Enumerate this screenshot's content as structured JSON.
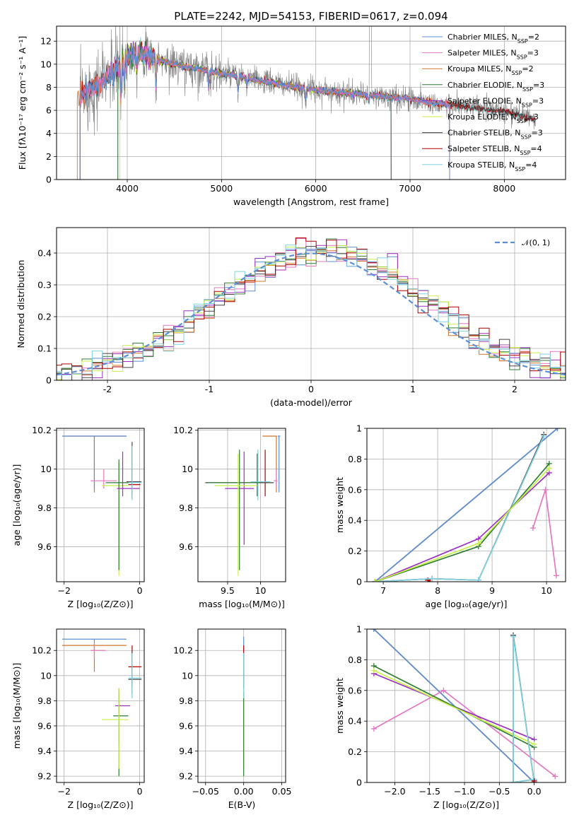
{
  "figure_title": "PLATE=2242, MJD=54153, FIBERID=0617, z=0.094",
  "colors": {
    "chabrier_miles": "#5b8fd6",
    "salpeter_miles": "#e377c2",
    "kroupa_miles": "#d2752b",
    "chabrier_elodie": "#2e7d32",
    "salpeter_elodie": "#9b30c0",
    "kroupa_elodie": "#c8f04a",
    "chabrier_stelib": "#444444",
    "salpeter_stelib": "#b00000",
    "kroupa_stelib": "#7fd3e0",
    "data": "#808080"
  },
  "chart_data": [
    {
      "type": "line",
      "title": "PLATE=2242, MJD=54153, FIBERID=0617, z=0.094",
      "xlabel": "wavelength [Angstrom, rest frame]",
      "ylabel": "Flux [fλ10⁻¹⁷ erg cm⁻² s⁻¹ A⁻¹]",
      "xlim": [
        3250,
        8650
      ],
      "ylim": [
        0,
        13.3
      ],
      "xticks": [
        4000,
        5000,
        6000,
        7000,
        8000
      ],
      "yticks": [
        0,
        2,
        4,
        6,
        8,
        10,
        12
      ],
      "legend_position": "top-right",
      "legend": [
        "Chabrier MILES, N_SSP=2",
        "Salpeter MILES, N_SSP=3",
        "Kroupa MILES, N_SSP=2",
        "Chabrier ELODIE, N_SSP=3",
        "Salpeter ELODIE, N_SSP=3",
        "Kroupa ELODIE, N_SSP=3",
        "Chabrier STELIB, N_SSP=3",
        "Salpeter STELIB, N_SSP=4",
        "Kroupa STELIB, N_SSP=4"
      ],
      "continuum": {
        "x": [
          3500,
          3600,
          3700,
          3800,
          3900,
          4000,
          4100,
          4200,
          4300,
          4400,
          4500,
          4600,
          4700,
          4800,
          4900,
          5000,
          5200,
          5400,
          5600,
          5800,
          6000,
          6200,
          6400,
          6600,
          6800,
          7000,
          7200,
          7400,
          7600,
          7800,
          8000,
          8200,
          8300
        ],
        "y": [
          7.2,
          7.8,
          8.3,
          9.0,
          9.8,
          10.6,
          11.0,
          10.8,
          10.5,
          10.2,
          10.0,
          9.8,
          9.7,
          9.5,
          9.3,
          9.2,
          8.9,
          8.6,
          8.3,
          8.0,
          7.8,
          7.6,
          7.4,
          7.3,
          7.1,
          7.0,
          6.7,
          6.5,
          6.3,
          6.1,
          5.9,
          5.5,
          5.2
        ]
      }
    },
    {
      "type": "step",
      "xlabel": "(data-model)/error",
      "ylabel": "Normed distribution",
      "xlim": [
        -2.5,
        2.5
      ],
      "ylim": [
        0,
        0.48
      ],
      "xticks": [
        -2,
        -1,
        0,
        1,
        2
      ],
      "yticks": [
        0.0,
        0.1,
        0.2,
        0.3,
        0.4
      ],
      "legend_position": "top-right",
      "legend": [
        "𝒩(0, 1)"
      ],
      "normal_curve": {
        "mean": 0,
        "sigma": 1
      }
    },
    {
      "type": "errorbar",
      "xlabel": "Z [log₁₀(Z/Z⊙)]",
      "ylabel": "age  [log₁₀(age/yr)]",
      "xlim": [
        -2.2,
        0.12
      ],
      "ylim": [
        9.42,
        10.21
      ],
      "xticks": [
        -2,
        0
      ],
      "xticklabels": [
        "−2",
        "0"
      ],
      "yticks": [
        9.6,
        9.8,
        10.0,
        10.2
      ],
      "points": [
        {
          "model": "kroupa_miles",
          "x": -1.2,
          "y": 10.17,
          "xlo": -2.05,
          "xhi": -0.35,
          "ylo": 9.88,
          "yhi": 10.17
        },
        {
          "model": "chabrier_miles",
          "x": -1.2,
          "y": 10.17,
          "xlo": -2.05,
          "xhi": -0.35,
          "ylo": 9.9,
          "yhi": 10.17
        },
        {
          "model": "salpeter_miles",
          "x": -0.95,
          "y": 9.94,
          "xlo": -1.3,
          "xhi": -0.6,
          "ylo": 9.9,
          "yhi": 10.0
        },
        {
          "model": "kroupa_elodie",
          "x": -0.55,
          "y": 9.915,
          "xlo": -1.0,
          "xhi": -0.3,
          "ylo": 9.45,
          "yhi": 10.03
        },
        {
          "model": "chabrier_elodie",
          "x": -0.55,
          "y": 9.93,
          "xlo": -0.9,
          "xhi": -0.25,
          "ylo": 9.48,
          "yhi": 10.05
        },
        {
          "model": "salpeter_elodie",
          "x": -0.45,
          "y": 9.9,
          "xlo": -0.6,
          "xhi": 0.0,
          "ylo": 9.86,
          "yhi": 10.09
        },
        {
          "model": "chabrier_stelib",
          "x": -0.2,
          "y": 9.935,
          "xlo": -0.35,
          "xhi": 0.05,
          "ylo": 9.86,
          "yhi": 10.14
        },
        {
          "model": "salpeter_stelib",
          "x": -0.2,
          "y": 9.92,
          "xlo": -0.3,
          "xhi": 0.02,
          "ylo": 9.85,
          "yhi": 10.12
        },
        {
          "model": "kroupa_stelib",
          "x": -0.2,
          "y": 9.93,
          "xlo": -0.3,
          "xhi": 0.05,
          "ylo": 9.84,
          "yhi": 10.12
        }
      ]
    },
    {
      "type": "errorbar",
      "xlabel": "mass [log₁₀(M/M⊙)]",
      "xlim": [
        9.05,
        10.38
      ],
      "ylim": [
        9.42,
        10.21
      ],
      "xticks": [
        9.5,
        10.0
      ],
      "yticks": [
        9.6,
        9.8,
        10.0,
        10.2
      ],
      "points": [
        {
          "model": "kroupa_miles",
          "x": 10.24,
          "y": 10.17,
          "xlo": 10.03,
          "xhi": 10.25,
          "ylo": 9.88,
          "yhi": 10.17
        },
        {
          "model": "chabrier_miles",
          "x": 10.28,
          "y": 10.17,
          "xlo": 10.26,
          "xhi": 10.3,
          "ylo": 9.88,
          "yhi": 10.17
        },
        {
          "model": "salpeter_stelib",
          "x": 10.07,
          "y": 9.93,
          "xlo": 9.9,
          "xhi": 10.12,
          "ylo": 9.86,
          "yhi": 10.1
        },
        {
          "model": "chabrier_stelib",
          "x": 9.95,
          "y": 9.93,
          "xlo": 9.16,
          "xhi": 10.2,
          "ylo": 9.86,
          "yhi": 10.08
        },
        {
          "model": "kroupa_stelib",
          "x": 9.96,
          "y": 9.935,
          "xlo": 9.85,
          "xhi": 10.15,
          "ylo": 9.84,
          "yhi": 10.1
        },
        {
          "model": "salpeter_elodie",
          "x": 9.75,
          "y": 9.9,
          "xlo": 9.46,
          "xhi": 9.9,
          "ylo": 9.61,
          "yhi": 10.09
        },
        {
          "model": "chabrier_elodie",
          "x": 9.68,
          "y": 9.93,
          "xlo": 9.2,
          "xhi": 9.98,
          "ylo": 9.48,
          "yhi": 10.1
        },
        {
          "model": "kroupa_elodie",
          "x": 9.66,
          "y": 9.915,
          "xlo": 9.3,
          "xhi": 9.95,
          "ylo": 9.45,
          "yhi": 10.08
        },
        {
          "model": "salpeter_miles",
          "x": 10.24,
          "y": 9.94,
          "xlo": 10.2,
          "xhi": 10.26,
          "ylo": 9.9,
          "yhi": 10.0
        }
      ]
    },
    {
      "type": "line",
      "xlabel": "age  [log₁₀(age/yr)]",
      "ylabel": "mass weight",
      "xlim": [
        6.7,
        10.35
      ],
      "ylim": [
        0,
        1.0
      ],
      "xticks": [
        7,
        8,
        9,
        10
      ],
      "yticks": [
        0.0,
        0.2,
        0.4,
        0.6,
        0.8,
        1.0
      ],
      "series": [
        {
          "model": "kroupa_miles",
          "x": [
            6.85,
            10.2
          ],
          "y": [
            0.0,
            1.0
          ]
        },
        {
          "model": "chabrier_miles",
          "x": [
            6.85,
            10.2
          ],
          "y": [
            0.0,
            1.0
          ]
        },
        {
          "model": "salpeter_miles",
          "x": [
            9.75,
            9.98,
            10.18
          ],
          "y": [
            0.35,
            0.6,
            0.04
          ]
        },
        {
          "model": "salpeter_stelib",
          "x": [
            7.82,
            7.86
          ],
          "y": [
            0.01,
            0.0
          ]
        },
        {
          "model": "chabrier_stelib",
          "x": [
            6.85,
            7.9,
            8.75,
            9.95
          ],
          "y": [
            0.0,
            0.02,
            0.01,
            0.96
          ]
        },
        {
          "model": "kroupa_stelib",
          "x": [
            6.85,
            7.9,
            8.75,
            9.95
          ],
          "y": [
            0.0,
            0.02,
            0.01,
            0.95
          ]
        },
        {
          "model": "salpeter_elodie",
          "x": [
            6.85,
            8.75,
            10.05
          ],
          "y": [
            0.0,
            0.28,
            0.71
          ]
        },
        {
          "model": "chabrier_elodie",
          "x": [
            6.85,
            8.75,
            10.05
          ],
          "y": [
            0.0,
            0.23,
            0.77
          ]
        },
        {
          "model": "kroupa_elodie",
          "x": [
            6.85,
            8.75,
            10.05
          ],
          "y": [
            0.0,
            0.25,
            0.74
          ]
        }
      ]
    },
    {
      "type": "errorbar",
      "xlabel": "Z [log₁₀(Z/Z⊙)]",
      "ylabel": "mass [log₁₀(M/M⊙)]",
      "xlim": [
        -2.2,
        0.12
      ],
      "ylim": [
        9.15,
        10.37
      ],
      "xticks": [
        -2,
        0
      ],
      "xticklabels": [
        "−2",
        "0"
      ],
      "yticks": [
        9.2,
        9.4,
        9.6,
        9.8,
        10.0,
        10.2
      ],
      "points": [
        {
          "model": "chabrier_miles",
          "x": -1.2,
          "y": 10.29,
          "xlo": -2.05,
          "xhi": -0.35,
          "ylo": 10.2,
          "yhi": 10.29
        },
        {
          "model": "kroupa_miles",
          "x": -1.2,
          "y": 10.24,
          "xlo": -2.05,
          "xhi": -0.35,
          "ylo": 10.03,
          "yhi": 10.25
        },
        {
          "model": "salpeter_miles",
          "x": -1.2,
          "y": 10.2,
          "xlo": -1.3,
          "xhi": -0.9,
          "ylo": 10.14,
          "yhi": 10.26
        },
        {
          "model": "salpeter_stelib",
          "x": -0.2,
          "y": 10.07,
          "xlo": -0.3,
          "xhi": 0.05,
          "ylo": 9.9,
          "yhi": 10.24
        },
        {
          "model": "chabrier_stelib",
          "x": -0.2,
          "y": 9.97,
          "xlo": -0.3,
          "xhi": 0.05,
          "ylo": 9.85,
          "yhi": 10.2
        },
        {
          "model": "kroupa_stelib",
          "x": -0.2,
          "y": 9.98,
          "xlo": -0.3,
          "xhi": 0.05,
          "ylo": 9.82,
          "yhi": 10.18
        },
        {
          "model": "salpeter_elodie",
          "x": -0.55,
          "y": 9.76,
          "xlo": -0.65,
          "xhi": -0.25,
          "ylo": 9.46,
          "yhi": 9.9
        },
        {
          "model": "chabrier_elodie",
          "x": -0.55,
          "y": 9.68,
          "xlo": -0.7,
          "xhi": -0.3,
          "ylo": 9.2,
          "yhi": 9.87
        },
        {
          "model": "kroupa_elodie",
          "x": -0.55,
          "y": 9.65,
          "xlo": -1.0,
          "xhi": -0.3,
          "ylo": 9.26,
          "yhi": 9.9
        }
      ]
    },
    {
      "type": "errorbar",
      "xlabel": "E(B-V)",
      "xlim": [
        -0.06,
        0.055
      ],
      "ylim": [
        9.15,
        10.37
      ],
      "xticks": [
        -0.05,
        0.0,
        0.05
      ],
      "xticklabels": [
        "−0.05",
        "0.00",
        "0.05"
      ],
      "yticks": [
        9.2,
        9.4,
        9.6,
        9.8,
        10.0,
        10.2
      ],
      "points": [
        {
          "model": "kroupa_elodie",
          "x": 0.0,
          "y": 9.65,
          "xlo": 0.0,
          "xhi": 0.0,
          "ylo": 9.26,
          "yhi": 9.9
        },
        {
          "model": "chabrier_elodie",
          "x": 0.0,
          "y": 9.68,
          "xlo": 0.0,
          "xhi": 0.0,
          "ylo": 9.2,
          "yhi": 9.87
        },
        {
          "model": "chabrier_miles",
          "x": 0.0,
          "y": 10.29,
          "xlo": 0.0,
          "xhi": 0.0,
          "ylo": 10.2,
          "yhi": 10.31
        },
        {
          "model": "salpeter_stelib",
          "x": 0.0,
          "y": 10.07,
          "xlo": 0.0,
          "xhi": 0.0,
          "ylo": 9.9,
          "yhi": 10.24
        },
        {
          "model": "kroupa_stelib",
          "x": 0.0,
          "y": 9.98,
          "xlo": 0.0,
          "xhi": 0.0,
          "ylo": 9.82,
          "yhi": 10.18
        }
      ]
    },
    {
      "type": "line",
      "xlabel": "Z [log₁₀(Z/Z⊙)]",
      "ylabel": "mass weight",
      "xlim": [
        -2.4,
        0.45
      ],
      "ylim": [
        0,
        1.0
      ],
      "xticks": [
        -2.0,
        -1.5,
        -1.0,
        -0.5,
        0.0
      ],
      "xticklabels": [
        "−2.0",
        "−1.5",
        "−1.0",
        "−0.5",
        "0.0"
      ],
      "yticks": [
        0.0,
        0.2,
        0.4,
        0.6,
        0.8,
        1.0
      ],
      "series": [
        {
          "model": "kroupa_miles",
          "x": [
            -2.3,
            0.0
          ],
          "y": [
            1.0,
            0.0
          ]
        },
        {
          "model": "chabrier_miles",
          "x": [
            -2.3,
            0.0
          ],
          "y": [
            1.0,
            0.0
          ]
        },
        {
          "model": "salpeter_miles",
          "x": [
            -2.3,
            -1.3,
            0.3
          ],
          "y": [
            0.35,
            0.6,
            0.04
          ]
        },
        {
          "model": "salpeter_elodie",
          "x": [
            -2.3,
            0.0
          ],
          "y": [
            0.71,
            0.28
          ]
        },
        {
          "model": "chabrier_elodie",
          "x": [
            -2.3,
            0.0
          ],
          "y": [
            0.76,
            0.23
          ]
        },
        {
          "model": "kroupa_elodie",
          "x": [
            -2.3,
            0.0
          ],
          "y": [
            0.73,
            0.25
          ]
        },
        {
          "model": "chabrier_stelib",
          "x": [
            0.0,
            -0.3,
            -0.3,
            0.0
          ],
          "y": [
            0.0,
            0.96,
            0.0,
            0.02
          ]
        },
        {
          "model": "kroupa_stelib",
          "x": [
            0.0,
            -0.3,
            -0.3,
            0.0
          ],
          "y": [
            0.0,
            0.95,
            0.0,
            0.02
          ]
        },
        {
          "model": "salpeter_stelib",
          "x": [
            0.0,
            0.0
          ],
          "y": [
            0.0,
            0.01
          ]
        }
      ]
    }
  ]
}
